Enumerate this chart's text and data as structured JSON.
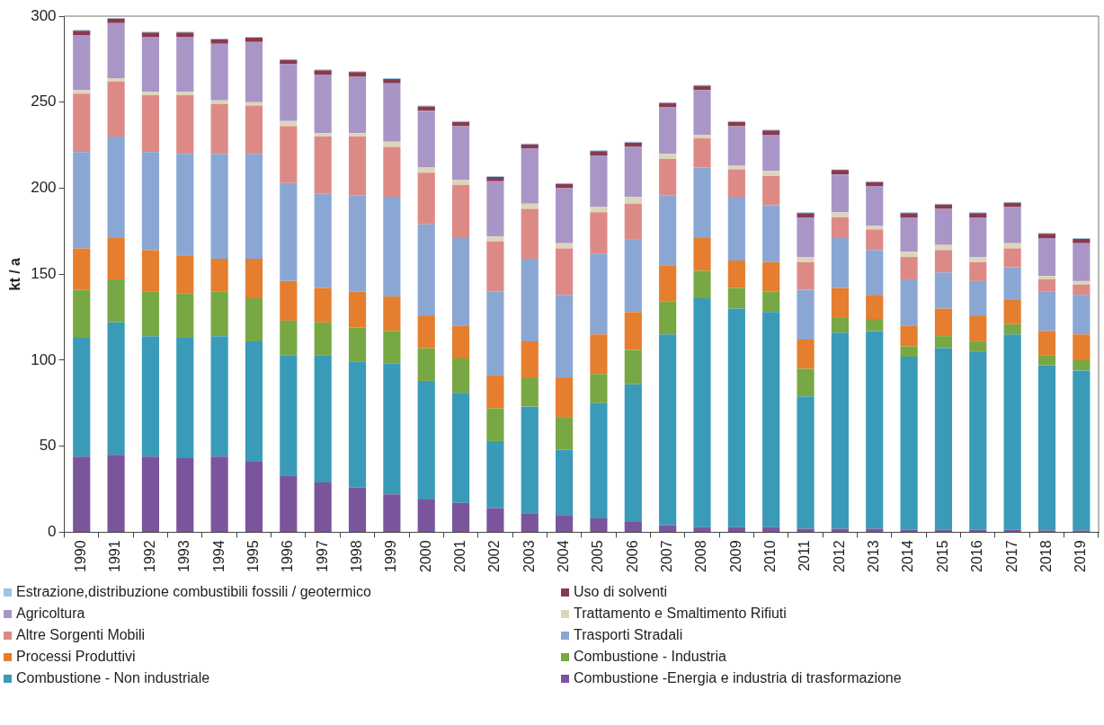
{
  "chart_data": {
    "type": "bar",
    "stacked": true,
    "ylabel": "kt / a",
    "categories": [
      "1990",
      "1991",
      "1992",
      "1993",
      "1994",
      "1995",
      "1996",
      "1997",
      "1998",
      "1999",
      "2000",
      "2001",
      "2002",
      "2003",
      "2004",
      "2005",
      "2006",
      "2007",
      "2008",
      "2009",
      "2010",
      "2011",
      "2012",
      "2013",
      "2014",
      "2015",
      "2016",
      "2017",
      "2018",
      "2019"
    ],
    "ylim": [
      0,
      300
    ],
    "yticks": [
      0,
      50,
      100,
      150,
      200,
      250,
      300
    ],
    "grid": false,
    "legend": "bottom",
    "series": [
      {
        "name": "Combustione -Energia e industria di trasformazione",
        "color": "#7b559b",
        "values": [
          44,
          45,
          44,
          43,
          44,
          41,
          33,
          29,
          26,
          22,
          19,
          17,
          14,
          11,
          10,
          8,
          6,
          4,
          3,
          3,
          3,
          2,
          2,
          2,
          1.5,
          1.5,
          1.5,
          1.5,
          1,
          1
        ]
      },
      {
        "name": "Combustione - Non industriale",
        "color": "#3a9bb8",
        "values": [
          69,
          77,
          70,
          70,
          70,
          70,
          70,
          74,
          73,
          76,
          69,
          64,
          39,
          62,
          38,
          67,
          80,
          111,
          133,
          127,
          125,
          77,
          114,
          115,
          100.5,
          105.5,
          103.5,
          113.5,
          96,
          93
        ]
      },
      {
        "name": "Combustione - Industria",
        "color": "#78a843",
        "values": [
          28,
          25,
          26,
          26,
          26,
          25,
          20,
          19,
          20,
          19,
          19,
          20,
          19,
          17,
          19,
          17,
          20,
          19,
          16,
          12,
          12,
          16,
          9,
          7,
          6,
          7,
          6,
          6,
          6,
          6
        ]
      },
      {
        "name": "Processi Produttivi",
        "color": "#e57e2e",
        "values": [
          24,
          24,
          24,
          22,
          19,
          23,
          23,
          20,
          21,
          20,
          19,
          19,
          19,
          21,
          23,
          23,
          22,
          21,
          19,
          16,
          17,
          17,
          17,
          14,
          12,
          16,
          15,
          14,
          14,
          15
        ]
      },
      {
        "name": "Trasporti Stradali",
        "color": "#8aa7d4",
        "values": [
          56,
          59,
          57,
          59,
          61,
          61,
          57,
          55,
          56,
          58,
          53,
          51,
          49,
          48,
          48,
          47,
          42,
          41,
          41,
          37,
          33,
          29,
          29,
          26,
          27,
          21,
          20,
          19,
          23,
          23
        ]
      },
      {
        "name": "Altre Sorgenti Mobili",
        "color": "#dd8a87",
        "values": [
          34,
          32,
          33,
          34,
          29,
          28,
          33,
          33,
          34,
          29,
          30,
          31,
          29,
          29,
          27,
          24,
          21,
          21,
          17,
          16,
          17,
          16,
          12,
          12,
          13,
          13,
          11,
          11,
          7,
          6
        ]
      },
      {
        "name": "Trattamento e Smaltimento Rifiuti",
        "color": "#dcd5bd",
        "values": [
          2,
          2,
          2,
          2,
          2,
          2,
          3,
          2,
          2,
          3,
          3,
          3,
          3,
          3,
          3,
          3,
          4,
          3,
          2,
          2,
          3,
          3,
          3,
          2,
          3,
          3,
          3,
          3,
          2,
          2
        ]
      },
      {
        "name": "Agricoltura",
        "color": "#a996c6",
        "values": [
          32,
          32,
          32,
          32,
          33,
          35,
          33,
          34,
          33,
          34,
          33,
          31,
          32,
          32,
          32,
          30,
          29,
          27,
          26,
          23,
          21,
          23,
          22,
          23,
          20,
          21,
          23,
          21,
          22,
          22
        ]
      },
      {
        "name": "Uso di solventi",
        "color": "#8a3a4e",
        "values": [
          2.5,
          2.5,
          2.5,
          2.5,
          2.5,
          2.5,
          2.5,
          2.5,
          2.5,
          2.5,
          2.5,
          2.5,
          2.5,
          2.5,
          2.5,
          2.5,
          2.5,
          2.5,
          2.5,
          2.5,
          2.5,
          2.5,
          2.5,
          2.5,
          2.5,
          2.5,
          2.5,
          2.5,
          2.5,
          2.5
        ]
      },
      {
        "name": "Estrazione,distribuzione combustibili fossili / geotermico",
        "color": "#9cc6e4",
        "values": [
          0.5,
          0.5,
          0.5,
          0.5,
          0.5,
          0.5,
          0.5,
          0.5,
          0.5,
          0.5,
          0.5,
          0.5,
          0.5,
          0.5,
          0.5,
          0.5,
          0.5,
          0.5,
          0.5,
          0.5,
          0.5,
          0.5,
          0.5,
          0.5,
          0.5,
          0.5,
          0.5,
          0.5,
          0.5,
          0.5
        ]
      }
    ]
  }
}
